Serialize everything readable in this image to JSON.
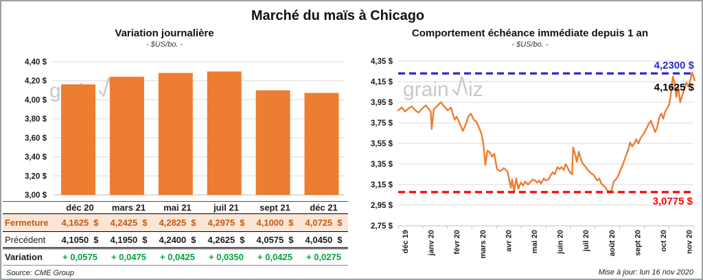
{
  "page": {
    "title": "Marché du maïs à Chicago",
    "updated": "Mise à jour: lun 16 nov 2020",
    "watermark": "grainwiz"
  },
  "colors": {
    "orange": "#ED7D31",
    "green": "#00A33C",
    "blue": "#2929C8",
    "red": "#FF0000",
    "fermeture_bg": "#FBE5D6",
    "fermeture_text": "#C55A11",
    "grid": "#D9D9D9",
    "axis": "#BFBFBF",
    "watermark_gray": "#C8C8C8"
  },
  "chart_data": [
    {
      "type": "bar",
      "title": "Variation journalière",
      "subtitle": "- $US/bo. -",
      "categories": [
        "déc 20",
        "mars 21",
        "mai 21",
        "juil 21",
        "sept 21",
        "déc 21"
      ],
      "values": [
        4.1625,
        4.2425,
        4.2825,
        4.2975,
        4.1,
        4.0725
      ],
      "ylim": [
        3.0,
        4.4
      ],
      "y_ticks": [
        "4,40 $",
        "4,20 $",
        "4,00 $",
        "3,80 $",
        "3,60 $",
        "3,40 $",
        "3,20 $",
        "3,00 $"
      ],
      "grid": true,
      "legend": "none",
      "bar_color": "#ED7D31"
    },
    {
      "type": "line",
      "title": "Comportement échéance immédiate depuis 1 an",
      "subtitle": "- $US/bo. -",
      "x_ticks": [
        "déc 19",
        "janv 20",
        "févr 20",
        "mars 20",
        "avr 20",
        "mai 20",
        "juin 20",
        "juil 20",
        "août 20",
        "sept 20",
        "oct 20",
        "nov 20"
      ],
      "y_ticks": [
        "4,35 $",
        "4,15 $",
        "3,95 $",
        "3,75 $",
        "3,55 $",
        "3,35 $",
        "3,15 $",
        "2,95 $",
        "2,75 $"
      ],
      "ylim": [
        2.75,
        4.35
      ],
      "grid": true,
      "line_color": "#ED7D31",
      "high_line": {
        "value": 4.23,
        "label": "4,2300 $",
        "color": "#2929C8"
      },
      "low_line": {
        "value": 3.0775,
        "label": "3,0775 $",
        "color": "#FF0000"
      },
      "last_value": 4.1625,
      "last_label": "4,1625 $",
      "x_unit": "fraction of one year (0 = déc 19, 1 = mi-nov 20)",
      "points": [
        [
          0.0,
          3.87
        ],
        [
          0.012,
          3.9
        ],
        [
          0.023,
          3.86
        ],
        [
          0.035,
          3.89
        ],
        [
          0.046,
          3.91
        ],
        [
          0.058,
          3.87
        ],
        [
          0.069,
          3.85
        ],
        [
          0.081,
          3.89
        ],
        [
          0.093,
          3.92
        ],
        [
          0.104,
          3.88
        ],
        [
          0.11,
          3.86
        ],
        [
          0.113,
          3.69
        ],
        [
          0.12,
          3.88
        ],
        [
          0.13,
          3.91
        ],
        [
          0.144,
          3.95
        ],
        [
          0.155,
          3.91
        ],
        [
          0.167,
          3.87
        ],
        [
          0.178,
          3.9
        ],
        [
          0.19,
          3.78
        ],
        [
          0.197,
          3.81
        ],
        [
          0.208,
          3.74
        ],
        [
          0.218,
          3.67
        ],
        [
          0.227,
          3.73
        ],
        [
          0.236,
          3.81
        ],
        [
          0.245,
          3.84
        ],
        [
          0.255,
          3.78
        ],
        [
          0.264,
          3.76
        ],
        [
          0.273,
          3.7
        ],
        [
          0.28,
          3.65
        ],
        [
          0.287,
          3.55
        ],
        [
          0.29,
          3.46
        ],
        [
          0.294,
          3.34
        ],
        [
          0.301,
          3.48
        ],
        [
          0.31,
          3.46
        ],
        [
          0.317,
          3.42
        ],
        [
          0.324,
          3.45
        ],
        [
          0.333,
          3.3
        ],
        [
          0.345,
          3.28
        ],
        [
          0.356,
          3.31
        ],
        [
          0.368,
          3.28
        ],
        [
          0.38,
          3.12
        ],
        [
          0.384,
          3.2
        ],
        [
          0.391,
          3.08
        ],
        [
          0.398,
          3.21
        ],
        [
          0.405,
          3.11
        ],
        [
          0.414,
          3.17
        ],
        [
          0.421,
          3.14
        ],
        [
          0.428,
          3.18
        ],
        [
          0.438,
          3.15
        ],
        [
          0.444,
          3.17
        ],
        [
          0.454,
          3.2
        ],
        [
          0.461,
          3.19
        ],
        [
          0.468,
          3.17
        ],
        [
          0.475,
          3.19
        ],
        [
          0.481,
          3.16
        ],
        [
          0.491,
          3.21
        ],
        [
          0.498,
          3.19
        ],
        [
          0.507,
          3.2
        ],
        [
          0.514,
          3.24
        ],
        [
          0.521,
          3.27
        ],
        [
          0.528,
          3.25
        ],
        [
          0.537,
          3.32
        ],
        [
          0.544,
          3.3
        ],
        [
          0.551,
          3.32
        ],
        [
          0.558,
          3.29
        ],
        [
          0.565,
          3.35
        ],
        [
          0.572,
          3.31
        ],
        [
          0.579,
          3.27
        ],
        [
          0.586,
          3.25
        ],
        [
          0.588,
          3.38
        ],
        [
          0.59,
          3.51
        ],
        [
          0.597,
          3.44
        ],
        [
          0.602,
          3.37
        ],
        [
          0.609,
          3.47
        ],
        [
          0.616,
          3.4
        ],
        [
          0.623,
          3.35
        ],
        [
          0.63,
          3.33
        ],
        [
          0.637,
          3.3
        ],
        [
          0.644,
          3.28
        ],
        [
          0.65,
          3.26
        ],
        [
          0.657,
          3.25
        ],
        [
          0.664,
          3.22
        ],
        [
          0.671,
          3.19
        ],
        [
          0.678,
          3.21
        ],
        [
          0.685,
          3.16
        ],
        [
          0.692,
          3.14
        ],
        [
          0.699,
          3.12
        ],
        [
          0.706,
          3.09
        ],
        [
          0.713,
          3.08
        ],
        [
          0.72,
          3.1
        ],
        [
          0.727,
          3.18
        ],
        [
          0.734,
          3.2
        ],
        [
          0.741,
          3.23
        ],
        [
          0.748,
          3.28
        ],
        [
          0.755,
          3.33
        ],
        [
          0.762,
          3.38
        ],
        [
          0.769,
          3.44
        ],
        [
          0.776,
          3.49
        ],
        [
          0.782,
          3.56
        ],
        [
          0.789,
          3.52
        ],
        [
          0.796,
          3.55
        ],
        [
          0.803,
          3.59
        ],
        [
          0.81,
          3.55
        ],
        [
          0.817,
          3.6
        ],
        [
          0.824,
          3.63
        ],
        [
          0.831,
          3.66
        ],
        [
          0.838,
          3.7
        ],
        [
          0.845,
          3.74
        ],
        [
          0.852,
          3.77
        ],
        [
          0.859,
          3.72
        ],
        [
          0.866,
          3.66
        ],
        [
          0.873,
          3.7
        ],
        [
          0.88,
          3.8
        ],
        [
          0.887,
          3.84
        ],
        [
          0.894,
          3.79
        ],
        [
          0.9,
          3.86
        ],
        [
          0.907,
          3.89
        ],
        [
          0.914,
          3.93
        ],
        [
          0.921,
          4.06
        ],
        [
          0.926,
          4.2
        ],
        [
          0.931,
          4.15
        ],
        [
          0.938,
          4.0
        ],
        [
          0.944,
          4.1
        ],
        [
          0.951,
          3.95
        ],
        [
          0.958,
          4.02
        ],
        [
          0.965,
          4.08
        ],
        [
          0.972,
          4.14
        ],
        [
          0.979,
          4.1
        ],
        [
          0.986,
          4.18
        ],
        [
          0.991,
          4.24
        ],
        [
          1.0,
          4.1625
        ]
      ]
    }
  ],
  "table": {
    "header": [
      "déc 20",
      "mars 21",
      "mai 21",
      "juil 21",
      "sept 21",
      "déc 21"
    ],
    "rows": [
      {
        "label": "Fermeture",
        "style": "fermeture",
        "unit": "$",
        "values": [
          "4,1625",
          "4,2425",
          "4,2825",
          "4,2975",
          "4,1000",
          "4,0725"
        ]
      },
      {
        "label": "Précédent",
        "style": "precedent",
        "unit": "$",
        "values": [
          "4,1050",
          "4,1950",
          "4,2400",
          "4,2625",
          "4,0575",
          "4,0450"
        ]
      },
      {
        "label": "Variation",
        "style": "variation",
        "unit": "",
        "values": [
          "+ 0,0575",
          "+ 0,0475",
          "+ 0,0425",
          "+ 0,0350",
          "+ 0,0425",
          "+ 0,0275"
        ]
      }
    ],
    "source": "Source: CME Group"
  }
}
